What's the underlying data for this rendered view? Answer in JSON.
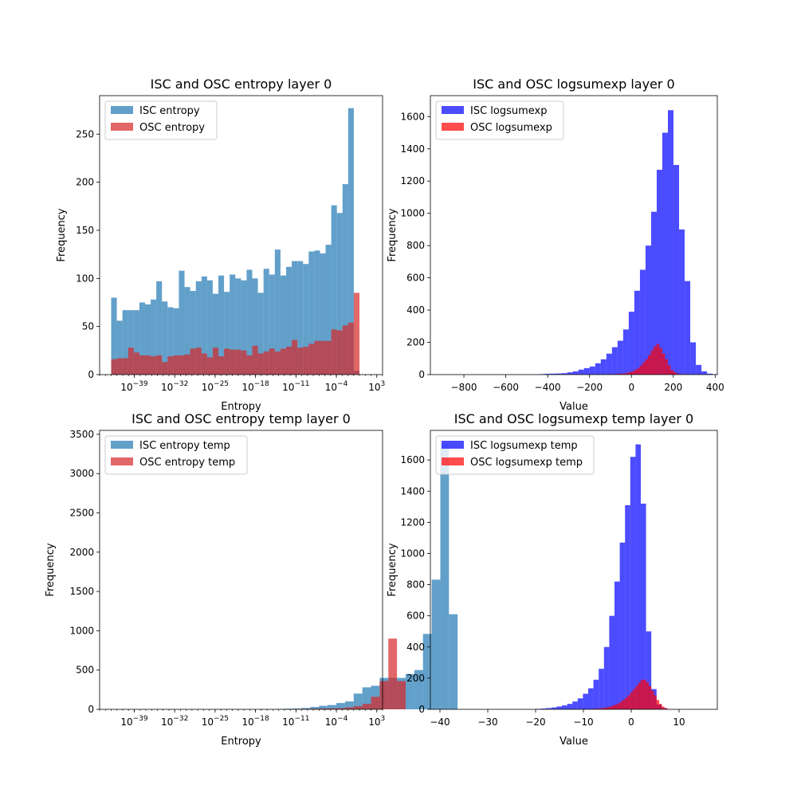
{
  "chart_data": [
    {
      "type": "bar",
      "subtype": "histogram",
      "title": "ISC and OSC entropy layer 0",
      "xlabel": "Entropy",
      "ylabel": "Frequency",
      "xscale": "log",
      "xlim_exp": [
        -45,
        4
      ],
      "ylim": [
        0,
        290
      ],
      "bin_exp": [
        -43,
        0
      ],
      "x_ticks": [
        {
          "base": "10",
          "exp": "−39"
        },
        {
          "base": "10",
          "exp": "−32"
        },
        {
          "base": "10",
          "exp": "−25"
        },
        {
          "base": "10",
          "exp": "−18"
        },
        {
          "base": "10",
          "exp": "−11"
        },
        {
          "base": "10",
          "exp": "−4"
        },
        {
          "base": "10",
          "exp": "3"
        }
      ],
      "x_tick_exps": [
        -39,
        -32,
        -25,
        -18,
        -11,
        -4,
        3
      ],
      "y_ticks": [
        0,
        50,
        100,
        150,
        200,
        250
      ],
      "legend_position": "upper-left",
      "series": [
        {
          "name": "ISC entropy",
          "color": "#1f77b4",
          "opacity": 0.7,
          "values": [
            80,
            56,
            67,
            67,
            67,
            75,
            73,
            78,
            97,
            76,
            70,
            69,
            108,
            91,
            87,
            97,
            102,
            98,
            84,
            103,
            86,
            104,
            100,
            98,
            109,
            100,
            85,
            110,
            104,
            130,
            103,
            112,
            118,
            118,
            115,
            128,
            129,
            126,
            135,
            176,
            168,
            198,
            277,
            4
          ]
        },
        {
          "name": "OSC entropy",
          "color": "#d62728",
          "opacity": 0.7,
          "values": [
            16,
            17,
            17,
            28,
            23,
            20,
            20,
            19,
            20,
            13,
            19,
            20,
            20,
            21,
            27,
            28,
            22,
            18,
            28,
            19,
            27,
            26,
            26,
            25,
            20,
            30,
            22,
            24,
            27,
            24,
            27,
            29,
            36,
            28,
            29,
            32,
            35,
            35,
            35,
            47,
            46,
            51,
            54,
            85
          ]
        }
      ]
    },
    {
      "type": "bar",
      "subtype": "histogram",
      "title": "ISC and OSC logsumexp layer 0",
      "xlabel": "Value",
      "ylabel": "Frequency",
      "xlim": [
        -960,
        410
      ],
      "ylim": [
        0,
        1730
      ],
      "x_ticks": [
        "−800",
        "−600",
        "−400",
        "−200",
        "0",
        "200",
        "400"
      ],
      "x_tick_values": [
        -800,
        -600,
        -400,
        -200,
        0,
        200,
        400
      ],
      "y_ticks": [
        0,
        200,
        400,
        600,
        800,
        1000,
        1200,
        1400,
        1600
      ],
      "legend_position": "upper-left",
      "series": [
        {
          "name": "ISC logsumexp",
          "color": "#0000ff",
          "opacity": 0.7,
          "bin_start": -440,
          "bin_width": 26.7,
          "values": [
            3,
            5,
            6,
            7,
            9,
            14,
            20,
            31,
            40,
            50,
            70,
            95,
            130,
            170,
            210,
            280,
            390,
            520,
            650,
            800,
            1010,
            1270,
            1500,
            1640,
            1300,
            900,
            580,
            200,
            60,
            20,
            6,
            2
          ]
        },
        {
          "name": "OSC logsumexp",
          "color": "#ff0000",
          "opacity": 0.7,
          "bin_start": -110,
          "bin_width": 13.5,
          "values": [
            1,
            2,
            3,
            4,
            5,
            7,
            10,
            15,
            20,
            28,
            38,
            55,
            75,
            95,
            120,
            150,
            175,
            190,
            165,
            130,
            95,
            58,
            28,
            15,
            6,
            3
          ]
        }
      ]
    },
    {
      "type": "bar",
      "subtype": "histogram",
      "title": "ISC and OSC entropy temp layer 0",
      "xlabel": "Entropy",
      "ylabel": "Frequency",
      "xscale": "log",
      "xlim_exp": [
        -45,
        4
      ],
      "ylim": [
        0,
        3550
      ],
      "x_ticks": [
        {
          "base": "10",
          "exp": "−39"
        },
        {
          "base": "10",
          "exp": "−32"
        },
        {
          "base": "10",
          "exp": "−25"
        },
        {
          "base": "10",
          "exp": "−18"
        },
        {
          "base": "10",
          "exp": "−11"
        },
        {
          "base": "10",
          "exp": "−4"
        },
        {
          "base": "10",
          "exp": "3"
        }
      ],
      "x_tick_exps": [
        -39,
        -32,
        -25,
        -18,
        -11,
        -4,
        3
      ],
      "y_ticks": [
        0,
        500,
        1000,
        1500,
        2000,
        2500,
        3000,
        3500
      ],
      "legend_position": "upper-left",
      "series": [
        {
          "name": "ISC entropy temp",
          "color": "#1f77b4",
          "opacity": 0.7,
          "bin_exp_start": -43,
          "bin_exp_width": 1.5,
          "values": [
            0,
            0,
            0,
            0,
            0,
            0,
            0,
            0,
            0,
            0,
            0,
            0,
            0,
            0,
            0,
            0,
            0,
            0,
            0,
            5,
            8,
            10,
            18,
            30,
            45,
            55,
            80,
            100,
            200,
            280,
            300,
            400,
            400,
            400,
            450,
            500,
            960,
            1650,
            3380,
            1210
          ]
        },
        {
          "name": "OSC entropy temp",
          "color": "#d62728",
          "opacity": 0.7,
          "bin_exp_start": -11.5,
          "bin_exp_width": 1.5,
          "values": [
            3,
            5,
            8,
            10,
            12,
            15,
            25,
            40,
            70,
            160,
            360,
            900,
            360
          ]
        }
      ]
    },
    {
      "type": "bar",
      "subtype": "histogram",
      "title": "ISC and OSC logsumexp temp layer 0",
      "xlabel": "Value",
      "ylabel": "Frequency",
      "xlim": [
        -42,
        18
      ],
      "ylim": [
        0,
        1790
      ],
      "x_ticks": [
        "−40",
        "−30",
        "−20",
        "−10",
        "0",
        "10"
      ],
      "x_tick_values": [
        -40,
        -30,
        -20,
        -10,
        0,
        10
      ],
      "y_ticks": [
        0,
        200,
        400,
        600,
        800,
        1000,
        1200,
        1400,
        1600
      ],
      "legend_position": "upper-left",
      "series": [
        {
          "name": "ISC logsumexp temp",
          "color": "#0000ff",
          "opacity": 0.7,
          "bin_start": -20,
          "bin_width": 1.1,
          "values": [
            3,
            5,
            8,
            12,
            18,
            25,
            35,
            50,
            70,
            100,
            135,
            190,
            260,
            400,
            600,
            820,
            1070,
            1310,
            1620,
            1700,
            1320,
            500,
            130,
            30,
            8
          ]
        },
        {
          "name": "OSC logsumexp temp",
          "color": "#ff0000",
          "opacity": 0.7,
          "bin_start": -9,
          "bin_width": 0.55,
          "values": [
            1,
            2,
            3,
            4,
            6,
            8,
            10,
            14,
            18,
            24,
            30,
            38,
            48,
            60,
            75,
            90,
            110,
            130,
            150,
            170,
            190,
            190,
            175,
            150,
            120,
            90,
            60,
            35,
            18,
            8,
            3
          ]
        }
      ]
    }
  ]
}
